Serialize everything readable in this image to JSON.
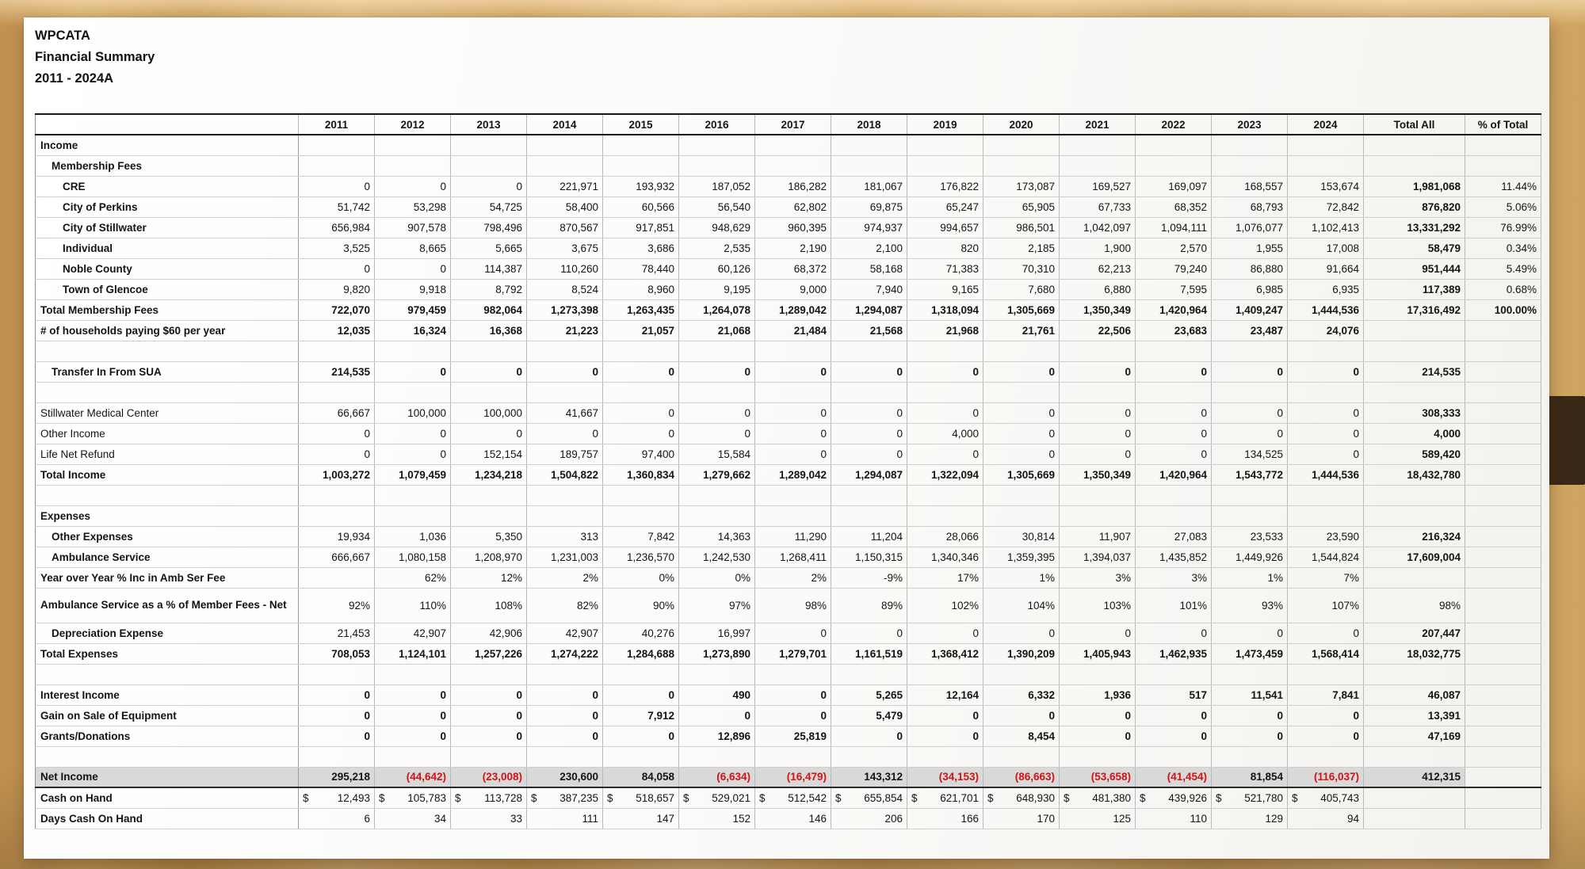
{
  "title": {
    "org": "WPCATA",
    "report": "Financial Summary",
    "period": "2011 - 2024A"
  },
  "colors": {
    "negative_number": "#cf1414",
    "net_income_row_fill": "#d9d9d9",
    "desk_wood": "#d2a563",
    "dark_band": "#3a2817"
  },
  "table": {
    "columns": [
      "",
      "2011",
      "2012",
      "2013",
      "2014",
      "2015",
      "2016",
      "2017",
      "2018",
      "2019",
      "2020",
      "2021",
      "2022",
      "2023",
      "2024",
      "Total All",
      "% of Total"
    ],
    "rows": [
      {
        "cls": "lb",
        "i": 0,
        "label": "Income",
        "cells": []
      },
      {
        "cls": "lb",
        "i": 1,
        "label": "Membership Fees",
        "cells": []
      },
      {
        "cls": "lb",
        "i": 2,
        "label": "CRE",
        "cells": [
          "0",
          "0",
          "0",
          "221,971",
          "193,932",
          "187,052",
          "186,282",
          "181,067",
          "176,822",
          "173,087",
          "169,527",
          "169,097",
          "168,557",
          "153,674",
          "1,981,068",
          "11.44%"
        ]
      },
      {
        "cls": "lb",
        "i": 2,
        "label": "City of Perkins",
        "cells": [
          "51,742",
          "53,298",
          "54,725",
          "58,400",
          "60,566",
          "56,540",
          "62,802",
          "69,875",
          "65,247",
          "65,905",
          "67,733",
          "68,352",
          "68,793",
          "72,842",
          "876,820",
          "5.06%"
        ]
      },
      {
        "cls": "lb",
        "i": 2,
        "label": "City of Stillwater",
        "cells": [
          "656,984",
          "907,578",
          "798,496",
          "870,567",
          "917,851",
          "948,629",
          "960,395",
          "974,937",
          "994,657",
          "986,501",
          "1,042,097",
          "1,094,111",
          "1,076,077",
          "1,102,413",
          "13,331,292",
          "76.99%"
        ]
      },
      {
        "cls": "lb",
        "i": 2,
        "label": "Individual",
        "cells": [
          "3,525",
          "8,665",
          "5,665",
          "3,675",
          "3,686",
          "2,535",
          "2,190",
          "2,100",
          "820",
          "2,185",
          "1,900",
          "2,570",
          "1,955",
          "17,008",
          "58,479",
          "0.34%"
        ]
      },
      {
        "cls": "lb",
        "i": 2,
        "label": "Noble County",
        "cells": [
          "0",
          "0",
          "114,387",
          "110,260",
          "78,440",
          "60,126",
          "68,372",
          "58,168",
          "71,383",
          "70,310",
          "62,213",
          "79,240",
          "86,880",
          "91,664",
          "951,444",
          "5.49%"
        ]
      },
      {
        "cls": "lb",
        "i": 2,
        "label": "Town of Glencoe",
        "cells": [
          "9,820",
          "9,918",
          "8,792",
          "8,524",
          "8,960",
          "9,195",
          "9,000",
          "7,940",
          "9,165",
          "7,680",
          "6,880",
          "7,595",
          "6,985",
          "6,935",
          "117,389",
          "0.68%"
        ]
      },
      {
        "cls": "lb cb bt",
        "i": 0,
        "label": "Total Membership Fees",
        "cells": [
          "722,070",
          "979,459",
          "982,064",
          "1,273,398",
          "1,263,435",
          "1,264,078",
          "1,289,042",
          "1,294,087",
          "1,318,094",
          "1,305,669",
          "1,350,349",
          "1,420,964",
          "1,409,247",
          "1,444,536",
          "17,316,492",
          "100.00%"
        ]
      },
      {
        "cls": "lb cb",
        "i": 0,
        "label": "# of households paying $60 per year",
        "cells": [
          "12,035",
          "16,324",
          "16,368",
          "21,223",
          "21,057",
          "21,068",
          "21,484",
          "21,568",
          "21,968",
          "21,761",
          "22,506",
          "23,683",
          "23,487",
          "24,076",
          "",
          ""
        ]
      },
      {
        "cls": "",
        "i": 0,
        "label": "",
        "cells": []
      },
      {
        "cls": "lb cb",
        "i": 1,
        "label": "Transfer In From SUA",
        "cells": [
          "214,535",
          "0",
          "0",
          "0",
          "0",
          "0",
          "0",
          "0",
          "0",
          "0",
          "0",
          "0",
          "0",
          "0",
          "214,535",
          ""
        ]
      },
      {
        "cls": "",
        "i": 0,
        "label": "",
        "cells": []
      },
      {
        "cls": "",
        "i": 0,
        "label": "Stillwater Medical Center",
        "cells": [
          "66,667",
          "100,000",
          "100,000",
          "41,667",
          "0",
          "0",
          "0",
          "0",
          "0",
          "0",
          "0",
          "0",
          "0",
          "0",
          "308,333",
          ""
        ]
      },
      {
        "cls": "",
        "i": 0,
        "label": "Other Income",
        "cells": [
          "0",
          "0",
          "0",
          "0",
          "0",
          "0",
          "0",
          "0",
          "4,000",
          "0",
          "0",
          "0",
          "0",
          "0",
          "4,000",
          ""
        ]
      },
      {
        "cls": "",
        "i": 0,
        "label": "Life Net Refund",
        "cells": [
          "0",
          "0",
          "152,154",
          "189,757",
          "97,400",
          "15,584",
          "0",
          "0",
          "0",
          "0",
          "0",
          "0",
          "134,525",
          "0",
          "589,420",
          ""
        ]
      },
      {
        "cls": "lb cb bt",
        "i": 0,
        "label": "Total Income",
        "cells": [
          "1,003,272",
          "1,079,459",
          "1,234,218",
          "1,504,822",
          "1,360,834",
          "1,279,662",
          "1,289,042",
          "1,294,087",
          "1,322,094",
          "1,305,669",
          "1,350,349",
          "1,420,964",
          "1,543,772",
          "1,444,536",
          "18,432,780",
          ""
        ]
      },
      {
        "cls": "",
        "i": 0,
        "label": "",
        "cells": []
      },
      {
        "cls": "lb",
        "i": 0,
        "label": "Expenses",
        "cells": []
      },
      {
        "cls": "lb",
        "i": 1,
        "label": "Other Expenses",
        "cells": [
          "19,934",
          "1,036",
          "5,350",
          "313",
          "7,842",
          "14,363",
          "11,290",
          "11,204",
          "28,066",
          "30,814",
          "11,907",
          "27,083",
          "23,533",
          "23,590",
          "216,324",
          ""
        ]
      },
      {
        "cls": "lb",
        "i": 1,
        "label": "Ambulance Service",
        "cells": [
          "666,667",
          "1,080,158",
          "1,208,970",
          "1,231,003",
          "1,236,570",
          "1,242,530",
          "1,268,411",
          "1,150,315",
          "1,340,346",
          "1,359,395",
          "1,394,037",
          "1,435,852",
          "1,449,926",
          "1,544,824",
          "17,609,004",
          ""
        ]
      },
      {
        "cls": "lb nb",
        "i": 0,
        "label": "Year over Year % Inc in Amb Ser Fee",
        "cells": [
          "",
          "62%",
          "12%",
          "2%",
          "0%",
          "0%",
          "2%",
          "-9%",
          "17%",
          "1%",
          "3%",
          "3%",
          "1%",
          "7%",
          "",
          ""
        ]
      },
      {
        "cls": "lb tall nb",
        "i": 0,
        "label": "Ambulance Service as a % of Member Fees - Net",
        "cells": [
          "92%",
          "110%",
          "108%",
          "82%",
          "90%",
          "97%",
          "98%",
          "89%",
          "102%",
          "104%",
          "103%",
          "101%",
          "93%",
          "107%",
          "98%",
          ""
        ]
      },
      {
        "cls": "lb",
        "i": 1,
        "label": "Depreciation Expense",
        "cells": [
          "21,453",
          "42,907",
          "42,906",
          "42,907",
          "40,276",
          "16,997",
          "0",
          "0",
          "0",
          "0",
          "0",
          "0",
          "0",
          "0",
          "207,447",
          ""
        ]
      },
      {
        "cls": "lb cb bt",
        "i": 0,
        "label": "Total Expenses",
        "cells": [
          "708,053",
          "1,124,101",
          "1,257,226",
          "1,274,222",
          "1,284,688",
          "1,273,890",
          "1,279,701",
          "1,161,519",
          "1,368,412",
          "1,390,209",
          "1,405,943",
          "1,462,935",
          "1,473,459",
          "1,568,414",
          "18,032,775",
          ""
        ]
      },
      {
        "cls": "",
        "i": 0,
        "label": "",
        "cells": []
      },
      {
        "cls": "lb cb",
        "i": 0,
        "label": "Interest Income",
        "cells": [
          "0",
          "0",
          "0",
          "0",
          "0",
          "490",
          "0",
          "5,265",
          "12,164",
          "6,332",
          "1,936",
          "517",
          "11,541",
          "7,841",
          "46,087",
          ""
        ]
      },
      {
        "cls": "lb cb",
        "i": 0,
        "label": "Gain on Sale of Equipment",
        "cells": [
          "0",
          "0",
          "0",
          "0",
          "7,912",
          "0",
          "0",
          "5,479",
          "0",
          "0",
          "0",
          "0",
          "0",
          "0",
          "13,391",
          ""
        ]
      },
      {
        "cls": "lb cb",
        "i": 0,
        "label": "Grants/Donations",
        "cells": [
          "0",
          "0",
          "0",
          "0",
          "0",
          "12,896",
          "25,819",
          "0",
          "0",
          "8,454",
          "0",
          "0",
          "0",
          "0",
          "47,169",
          ""
        ]
      },
      {
        "cls": "",
        "i": 0,
        "label": "",
        "cells": []
      },
      {
        "cls": "lb cb bt bb fill",
        "i": 0,
        "label": "Net Income",
        "cells": [
          "295,218",
          "(44,642)",
          "(23,008)",
          "230,600",
          "84,058",
          "(6,634)",
          "(16,479)",
          "143,312",
          "(34,153)",
          "(86,663)",
          "(53,658)",
          "(41,454)",
          "81,854",
          "(116,037)",
          "412,315",
          ""
        ]
      },
      {
        "cls": "lb",
        "i": 0,
        "label": "Cash on Hand",
        "cells": [
          "$ 12,493",
          "$ 105,783",
          "$ 113,728",
          "$ 387,235",
          "$ 518,657",
          "$ 529,021",
          "$ 512,542",
          "$ 655,854",
          "$ 621,701",
          "$ 648,930",
          "$ 481,380",
          "$ 439,926",
          "$ 521,780",
          "$ 405,743",
          "",
          ""
        ]
      },
      {
        "cls": "lb",
        "i": 0,
        "label": "Days Cash On Hand",
        "cells": [
          "6",
          "34",
          "33",
          "111",
          "147",
          "152",
          "146",
          "206",
          "166",
          "170",
          "125",
          "110",
          "129",
          "94",
          "",
          ""
        ]
      }
    ]
  }
}
